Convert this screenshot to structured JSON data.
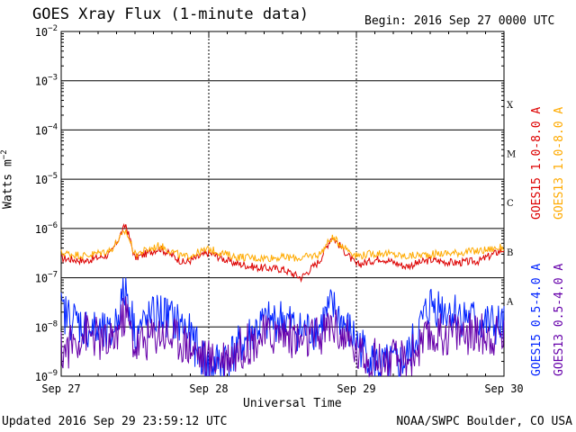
{
  "title": "GOES Xray Flux (1-minute data)",
  "begin": "Begin:  2016 Sep 27 0000 UTC",
  "updated": "Updated 2016 Sep 29 23:59:12 UTC",
  "credit": "NOAA/SWPC Boulder, CO USA",
  "chart_data": {
    "type": "line",
    "title": "GOES Xray Flux (1-minute data)",
    "xlabel": "Universal Time",
    "ylabel": "Watts m^-2",
    "yscale": "log",
    "ylim": [
      1e-09,
      0.01
    ],
    "xlim_days": [
      0,
      3
    ],
    "x_tick_labels": [
      "Sep 27",
      "Sep 28",
      "Sep 29",
      "Sep 30"
    ],
    "y_tick_labels": [
      {
        "base": "10",
        "exp": "-2"
      },
      {
        "base": "10",
        "exp": "-3"
      },
      {
        "base": "10",
        "exp": "-4"
      },
      {
        "base": "10",
        "exp": "-5"
      },
      {
        "base": "10",
        "exp": "-6"
      },
      {
        "base": "10",
        "exp": "-7"
      },
      {
        "base": "10",
        "exp": "-8"
      },
      {
        "base": "10",
        "exp": "-9"
      }
    ],
    "flare_classes": [
      "X",
      "M",
      "C",
      "B",
      "A"
    ],
    "grid": true,
    "legend_position": "right",
    "series": [
      {
        "name": "GOES15 1.0-8.0 A",
        "color": "#dd0000",
        "band": "long",
        "x": [
          "Sep 27 00:00",
          "Sep 27 04:00",
          "Sep 27 08:00",
          "Sep 27 10:30",
          "Sep 27 12:00",
          "Sep 27 16:00",
          "Sep 27 20:00",
          "Sep 28 00:00",
          "Sep 28 04:00",
          "Sep 28 08:00",
          "Sep 28 12:00",
          "Sep 28 15:00",
          "Sep 28 18:00",
          "Sep 28 20:00",
          "Sep 29 00:00",
          "Sep 29 04:00",
          "Sep 29 08:00",
          "Sep 29 12:00",
          "Sep 29 16:00",
          "Sep 29 20:00",
          "Sep 29 23:59"
        ],
        "y": [
          2.5e-07,
          2.2e-07,
          3e-07,
          1.2e-06,
          2.5e-07,
          4e-07,
          2e-07,
          3.2e-07,
          2e-07,
          1.6e-07,
          1.5e-07,
          1e-07,
          2.2e-07,
          7e-07,
          1.8e-07,
          2.5e-07,
          1.7e-07,
          2.3e-07,
          2e-07,
          2.2e-07,
          3.8e-07
        ]
      },
      {
        "name": "GOES13 1.0-8.0 A",
        "color": "#ffaa00",
        "band": "long",
        "x": [
          "Sep 27 00:00",
          "Sep 27 04:00",
          "Sep 27 08:00",
          "Sep 27 10:30",
          "Sep 27 12:00",
          "Sep 27 16:00",
          "Sep 27 20:00",
          "Sep 28 00:00",
          "Sep 28 04:00",
          "Sep 28 08:00",
          "Sep 28 12:00",
          "Sep 28 15:00",
          "Sep 28 18:00",
          "Sep 28 20:00",
          "Sep 29 00:00",
          "Sep 29 04:00",
          "Sep 29 08:00",
          "Sep 29 12:00",
          "Sep 29 16:00",
          "Sep 29 20:00",
          "Sep 29 23:59"
        ],
        "y": [
          3.2e-07,
          2.8e-07,
          3.6e-07,
          9e-07,
          3e-07,
          4.5e-07,
          2.6e-07,
          3.8e-07,
          2.7e-07,
          2.5e-07,
          2.6e-07,
          2.5e-07,
          3e-07,
          6.5e-07,
          2.8e-07,
          3.2e-07,
          2.7e-07,
          3e-07,
          3.2e-07,
          3.5e-07,
          4.2e-07
        ]
      },
      {
        "name": "GOES15 0.5-4.0 A",
        "color": "#0022ff",
        "band": "short",
        "x": [
          "Sep 27 00:00",
          "Sep 27 04:00",
          "Sep 27 08:00",
          "Sep 27 10:30",
          "Sep 27 12:00",
          "Sep 27 16:00",
          "Sep 27 20:00",
          "Sep 28 00:00",
          "Sep 28 04:00",
          "Sep 28 08:00",
          "Sep 28 12:00",
          "Sep 28 15:00",
          "Sep 28 18:00",
          "Sep 28 20:00",
          "Sep 29 00:00",
          "Sep 29 04:00",
          "Sep 29 08:00",
          "Sep 29 12:00",
          "Sep 29 16:00",
          "Sep 29 20:00",
          "Sep 29 23:59"
        ],
        "y": [
          2e-08,
          1e-08,
          6e-09,
          6e-08,
          8e-09,
          2e-08,
          1e-08,
          1.5e-09,
          3e-09,
          1e-08,
          1.5e-08,
          8e-09,
          1e-08,
          2.5e-08,
          5e-09,
          1.5e-09,
          2e-09,
          3e-08,
          2e-08,
          1.2e-08,
          1e-08
        ]
      },
      {
        "name": "GOES13 0.5-4.0 A",
        "color": "#6600aa",
        "band": "short",
        "x": [
          "Sep 27 00:00",
          "Sep 27 04:00",
          "Sep 27 08:00",
          "Sep 27 10:30",
          "Sep 27 12:00",
          "Sep 27 16:00",
          "Sep 27 20:00",
          "Sep 28 00:00",
          "Sep 28 04:00",
          "Sep 28 08:00",
          "Sep 28 12:00",
          "Sep 28 15:00",
          "Sep 28 18:00",
          "Sep 28 20:00",
          "Sep 29 00:00",
          "Sep 29 04:00",
          "Sep 29 08:00",
          "Sep 29 12:00",
          "Sep 29 16:00",
          "Sep 29 20:00",
          "Sep 29 23:59"
        ],
        "y": [
          3e-09,
          8e-09,
          4e-09,
          2e-08,
          4e-09,
          8e-09,
          5e-09,
          2e-09,
          3e-09,
          6e-09,
          8e-09,
          5e-09,
          6e-09,
          1.2e-08,
          3e-09,
          2e-09,
          2e-09,
          6e-09,
          8e-09,
          7e-09,
          7e-09
        ]
      }
    ]
  }
}
